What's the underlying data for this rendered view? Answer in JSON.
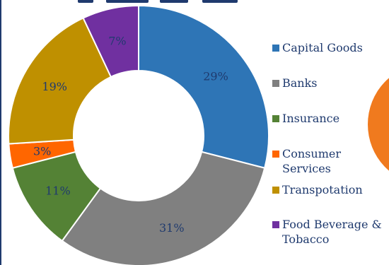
{
  "chart_data": {
    "type": "pie",
    "donut": true,
    "title": "",
    "categories": [
      "Capital Goods",
      "Banks",
      "Insurance",
      "Consumer Services",
      "Transpotation",
      "Food Beverage & Tobacco"
    ],
    "values": [
      29,
      31,
      11,
      3,
      19,
      7
    ],
    "data_labels": [
      "29%",
      "31%",
      "11%",
      "3%",
      "19%",
      "7%"
    ],
    "colors": [
      "#2e75b6",
      "#808080",
      "#548235",
      "#ff6600",
      "#bf9000",
      "#7030a0"
    ],
    "legend_position": "right",
    "legend": [
      {
        "label": "Capital Goods",
        "color": "#2e75b6"
      },
      {
        "label": "Banks",
        "color": "#808080"
      },
      {
        "label": "Insurance",
        "color": "#548235"
      },
      {
        "label": "Consumer\nServices",
        "color": "#ff6600"
      },
      {
        "label": "Transpotation",
        "color": "#bf9000"
      },
      {
        "label": "Food Beverage &\nTobacco",
        "color": "#7030a0"
      }
    ]
  },
  "decor": {
    "rule_color": "#1f3a6e",
    "label_color": "#1f3a6e",
    "side_chart_color": "#f07a1e"
  }
}
